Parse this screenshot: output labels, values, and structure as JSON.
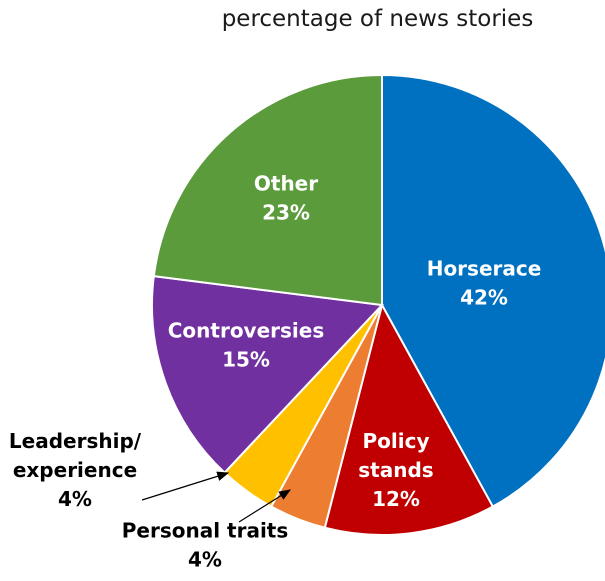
{
  "chart_data": {
    "type": "pie",
    "title": "percentage of news stories",
    "unit": "%",
    "slices": [
      {
        "label": "Horserace",
        "value": 42,
        "value_label": "42%",
        "color": "#0070c0",
        "label_color": "#ffffff",
        "label_lines": [
          "Horserace",
          "42%"
        ]
      },
      {
        "label": "Policy stands",
        "value": 12,
        "value_label": "12%",
        "color": "#c00000",
        "label_color": "#ffffff",
        "label_lines": [
          "Policy",
          "stands",
          "12%"
        ]
      },
      {
        "label": "Personal traits",
        "value": 4,
        "value_label": "4%",
        "color": "#ed7d31",
        "label_color": "#000000",
        "label_lines": [
          "Personal traits",
          "4%"
        ],
        "external": true
      },
      {
        "label": "Leadership/ experience",
        "value": 4,
        "value_label": "4%",
        "color": "#ffc000",
        "label_color": "#000000",
        "label_lines": [
          "Leadership/",
          "experience",
          "4%"
        ],
        "external": true
      },
      {
        "label": "Controversies",
        "value": 15,
        "value_label": "15%",
        "color": "#7030a0",
        "label_color": "#ffffff",
        "label_lines": [
          "Controversies",
          "15%"
        ]
      },
      {
        "label": "Other",
        "value": 23,
        "value_label": "23%",
        "color": "#5b9b3b",
        "label_color": "#ffffff",
        "label_lines": [
          "Other",
          "23%"
        ]
      }
    ]
  }
}
